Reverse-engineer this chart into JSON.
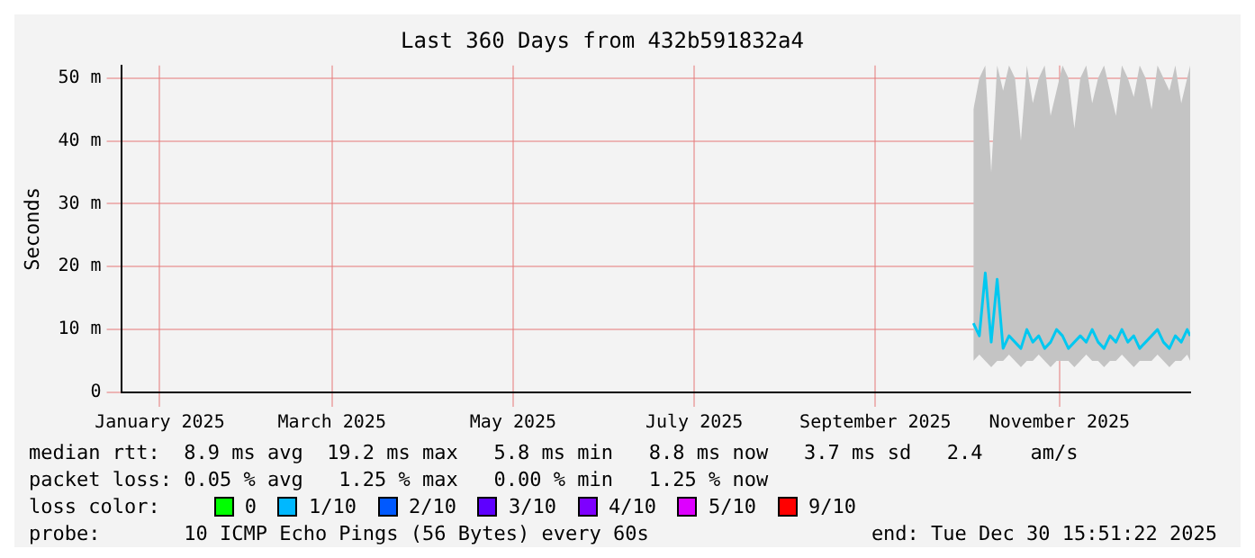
{
  "chart_data": {
    "type": "line",
    "title": "Last 360 Days from 432b591832a4",
    "ylabel": "Seconds",
    "xlim": [
      "2025-01-04",
      "2025-12-30"
    ],
    "xticks": [
      {
        "value": "2025-01-17",
        "label": "January 2025"
      },
      {
        "value": "2025-03-16",
        "label": "March 2025"
      },
      {
        "value": "2025-05-16",
        "label": "May 2025"
      },
      {
        "value": "2025-07-16",
        "label": "July 2025"
      },
      {
        "value": "2025-09-15",
        "label": "September 2025"
      },
      {
        "value": "2025-11-16",
        "label": "November 2025"
      }
    ],
    "ylim": [
      0,
      52
    ],
    "yticks": [
      0,
      {
        "value": 10,
        "label": "10 m"
      },
      {
        "value": 20,
        "label": "20 m"
      },
      {
        "value": 30,
        "label": "30 m"
      },
      {
        "value": 40,
        "label": "40 m"
      },
      {
        "value": 50,
        "label": "50 m"
      }
    ],
    "x": [
      "2025-10-18",
      "2025-10-20",
      "2025-10-22",
      "2025-10-24",
      "2025-10-26",
      "2025-10-28",
      "2025-10-30",
      "2025-11-01",
      "2025-11-03",
      "2025-11-05",
      "2025-11-07",
      "2025-11-09",
      "2025-11-11",
      "2025-11-13",
      "2025-11-15",
      "2025-11-17",
      "2025-11-19",
      "2025-11-21",
      "2025-11-23",
      "2025-11-25",
      "2025-11-27",
      "2025-11-29",
      "2025-12-01",
      "2025-12-03",
      "2025-12-05",
      "2025-12-07",
      "2025-12-09",
      "2025-12-11",
      "2025-12-13",
      "2025-12-15",
      "2025-12-17",
      "2025-12-19",
      "2025-12-21",
      "2025-12-23",
      "2025-12-25",
      "2025-12-27",
      "2025-12-29",
      "2025-12-30"
    ],
    "series": [
      {
        "color": "#00c8f0",
        "values": [
          11,
          9,
          19,
          8,
          18,
          7,
          9,
          8,
          7,
          10,
          8,
          9,
          7,
          8,
          10,
          9,
          7,
          8,
          9,
          8,
          10,
          8,
          7,
          9,
          8,
          10,
          8,
          9,
          7,
          8,
          9,
          10,
          8,
          7,
          9,
          8,
          10,
          9
        ],
        "lower": [
          5,
          6,
          5,
          4,
          5,
          5,
          6,
          5,
          4,
          5,
          5,
          6,
          5,
          4,
          5,
          5,
          5,
          4,
          5,
          6,
          5,
          5,
          4,
          5,
          5,
          6,
          5,
          4,
          5,
          5,
          5,
          6,
          5,
          4,
          5,
          5,
          6,
          5
        ],
        "upper": [
          45,
          50,
          52,
          35,
          52,
          48,
          52,
          50,
          40,
          52,
          46,
          50,
          52,
          44,
          48,
          52,
          50,
          42,
          50,
          52,
          46,
          50,
          52,
          48,
          44,
          52,
          50,
          47,
          52,
          50,
          45,
          52,
          50,
          48,
          52,
          46,
          50,
          52
        ]
      },
      {
        "name": "0",
        "color": "#00ff00",
        "values": [
          null,
          null,
          null,
          null,
          null,
          null,
          null,
          null,
          null,
          null,
          null,
          null,
          null,
          null,
          null,
          null,
          null,
          null,
          null,
          null,
          null,
          null,
          null,
          null,
          null,
          null,
          null,
          null,
          null,
          null,
          null,
          null,
          null,
          null,
          null,
          null,
          null,
          null
        ]
      },
      {
        "name": "1/10",
        "color": "#00b8ff",
        "values": [
          null,
          null,
          null,
          null,
          null,
          null,
          null,
          null,
          null,
          null,
          null,
          null,
          null,
          null,
          null,
          null,
          null,
          null,
          null,
          null,
          null,
          null,
          null,
          null,
          null,
          null,
          null,
          null,
          null,
          null,
          null,
          null,
          null,
          null,
          null,
          null,
          null,
          null
        ]
      },
      {
        "name": "2/10",
        "color": "#0059ff",
        "values": [
          null,
          null,
          null,
          null,
          null,
          null,
          null,
          null,
          null,
          null,
          null,
          null,
          null,
          null,
          null,
          null,
          null,
          null,
          null,
          null,
          null,
          null,
          null,
          null,
          null,
          null,
          null,
          null,
          null,
          null,
          null,
          null,
          null,
          null,
          null,
          null,
          null,
          null
        ]
      },
      {
        "name": "3/10",
        "color": "#5e00ff",
        "values": [
          null,
          null,
          null,
          null,
          null,
          null,
          null,
          null,
          null,
          null,
          null,
          null,
          null,
          null,
          null,
          null,
          null,
          null,
          null,
          null,
          null,
          null,
          null,
          null,
          null,
          null,
          null,
          null,
          null,
          null,
          null,
          null,
          null,
          null,
          null,
          null,
          null,
          null
        ]
      },
      {
        "name": "4/10",
        "color": "#7e00ff",
        "values": [
          null,
          null,
          null,
          null,
          null,
          null,
          null,
          null,
          null,
          null,
          null,
          null,
          null,
          null,
          null,
          null,
          null,
          null,
          null,
          null,
          null,
          null,
          null,
          null,
          null,
          null,
          null,
          null,
          null,
          null,
          null,
          null,
          null,
          null,
          null,
          null,
          null,
          null
        ]
      },
      {
        "name": "5/10",
        "color": "#dd00ff",
        "values": [
          null,
          null,
          null,
          null,
          null,
          null,
          null,
          null,
          null,
          null,
          null,
          null,
          null,
          null,
          null,
          null,
          null,
          null,
          null,
          null,
          null,
          null,
          null,
          null,
          null,
          null,
          null,
          null,
          null,
          null,
          null,
          null,
          null,
          null,
          null,
          null,
          null,
          null
        ]
      },
      {
        "name": "9/10",
        "color": "#ff0000",
        "values": [
          null,
          null,
          null,
          null,
          null,
          null,
          null,
          null,
          null,
          null,
          null,
          null,
          null,
          null,
          null,
          null,
          null,
          null,
          null,
          null,
          null,
          null,
          null,
          null,
          null,
          null,
          null,
          null,
          null,
          null,
          null,
          null,
          null,
          null,
          null,
          null,
          null,
          null
        ]
      }
    ],
    "legend_title": "loss color:",
    "legend": "bottom",
    "grid": true,
    "line_style": "solid",
    "annotations": [
      "median rtt:  8.9 ms avg  19.2 ms max   5.8 ms min   8.8 ms now   3.7 ms sd   2.4    am/s",
      "packet loss: 0.05 % avg   1.25 % max   0.00 % min   1.25 % now",
      "probe:       10 ICMP Echo Pings (56 Bytes) every 60s",
      "end: Tue Dec 30 15:51:22 2025"
    ]
  }
}
